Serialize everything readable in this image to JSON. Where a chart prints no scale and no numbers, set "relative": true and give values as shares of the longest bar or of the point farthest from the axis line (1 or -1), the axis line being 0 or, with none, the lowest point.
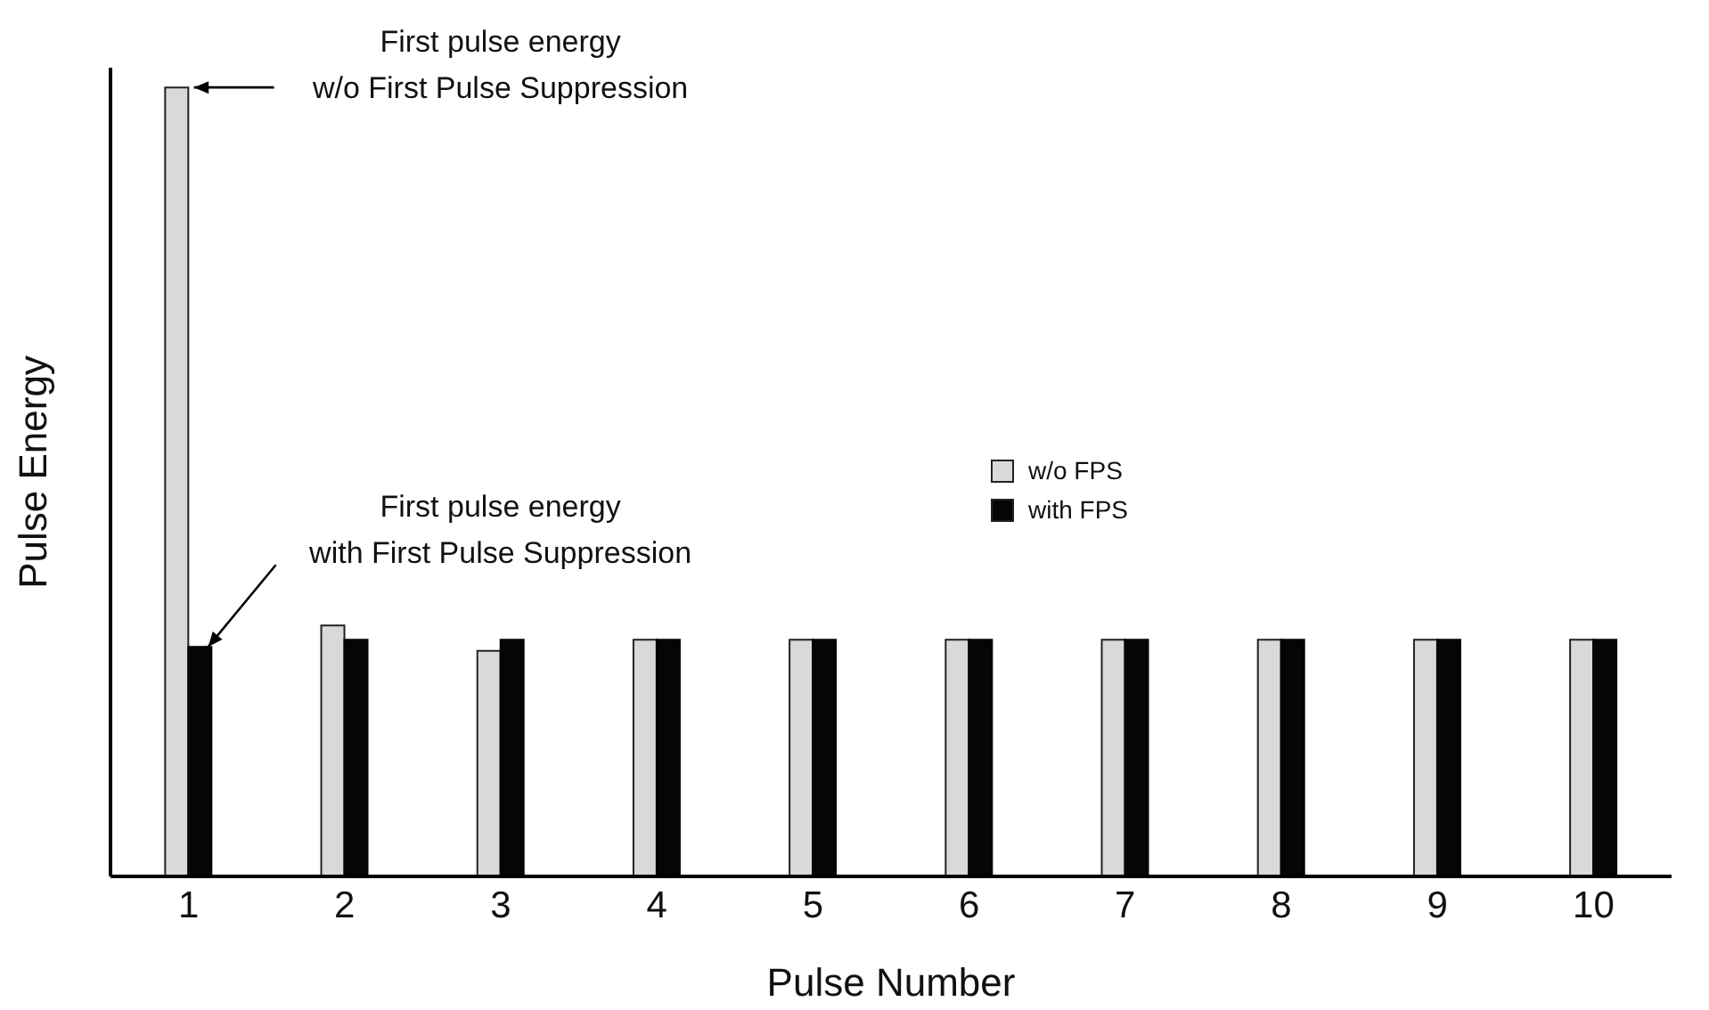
{
  "chart_data": {
    "type": "bar",
    "relative": true,
    "xlabel": "Pulse Number",
    "ylabel": "Pulse Energy",
    "categories": [
      "1",
      "2",
      "3",
      "4",
      "5",
      "6",
      "7",
      "8",
      "9",
      "10"
    ],
    "series": [
      {
        "name": "w/o FPS",
        "color": "#d9d9d9",
        "values": [
          1,
          0.318,
          0.286,
          0.3,
          0.3,
          0.3,
          0.3,
          0.3,
          0.3,
          0.3
        ]
      },
      {
        "name": "with FPS",
        "color": "#050505",
        "values": [
          0.291,
          0.3,
          0.3,
          0.3,
          0.3,
          0.3,
          0.3,
          0.3,
          0.3,
          0.3
        ]
      }
    ],
    "annotations": [
      {
        "text": "First pulse energy\nw/o First Pulse Suppression",
        "x": "1",
        "y": 1
      },
      "First pulse energy\nwith First Pulse Suppression"
    ],
    "legend": "center",
    "grid": false
  }
}
